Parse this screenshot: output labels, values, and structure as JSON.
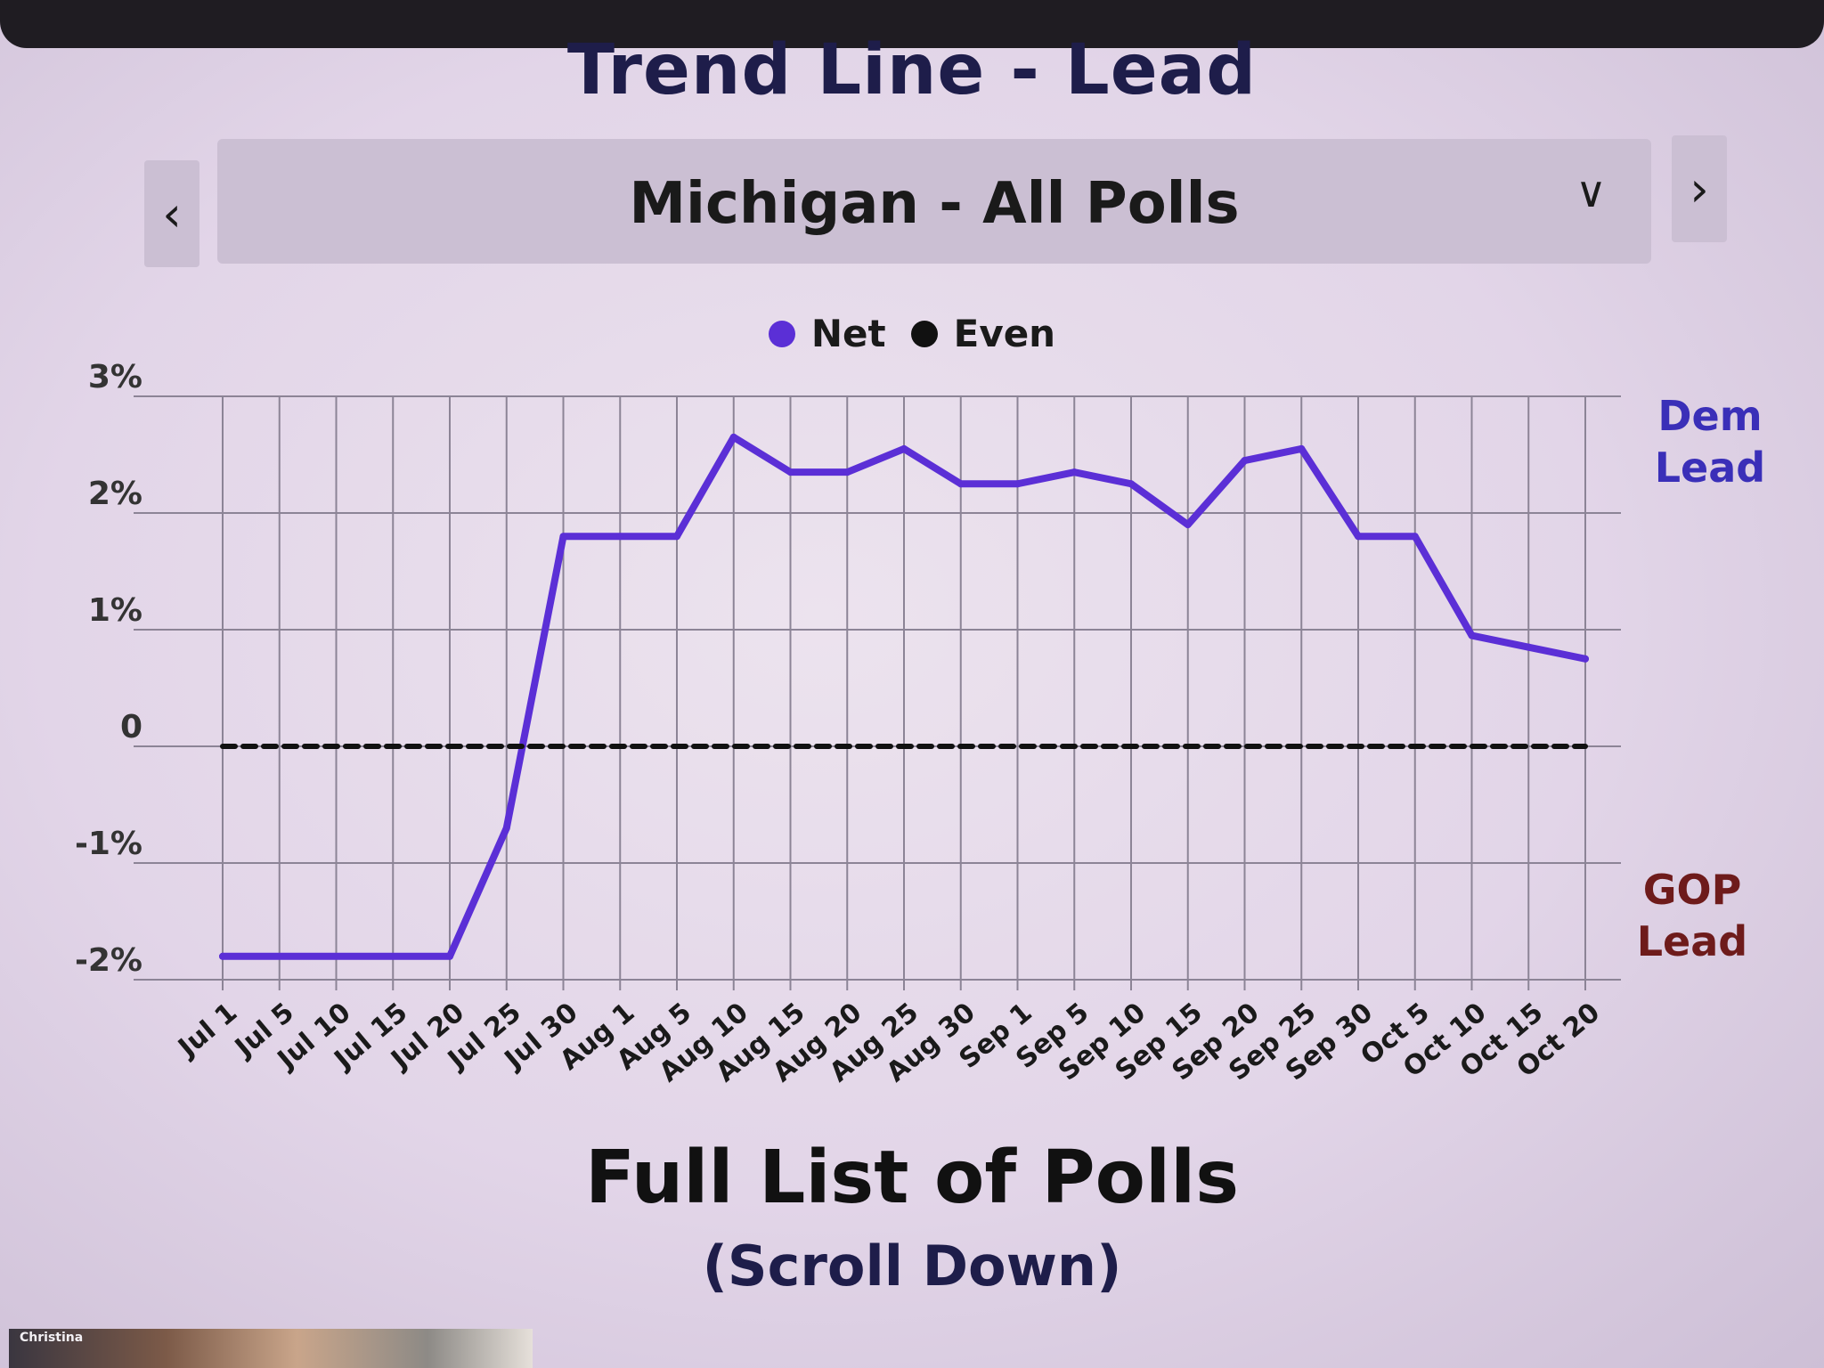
{
  "header": {
    "title": "Trend Line - Lead"
  },
  "selector": {
    "value": "Michigan - All Polls",
    "prev_icon": "chevron-left-icon",
    "next_icon": "chevron-right-icon",
    "dropdown_icon": "chevron-down-icon"
  },
  "legend": {
    "items": [
      {
        "label": "Net",
        "color": "#5b2fd6"
      },
      {
        "label": "Even",
        "color": "#111111"
      }
    ]
  },
  "side_labels": {
    "dem": "Dem\nLead",
    "gop": "GOP\nLead"
  },
  "footer": {
    "full_list": "Full List of Polls",
    "scroll_down": "(Scroll Down)"
  },
  "thumbnail": {
    "caption": "Christina"
  },
  "chart_data": {
    "type": "line",
    "title": "Trend Line - Lead",
    "subtitle": "Michigan - All Polls",
    "xlabel": "",
    "ylabel": "",
    "ylim": [
      -2,
      3
    ],
    "y_ticks": [
      {
        "value": 3,
        "label": "3%"
      },
      {
        "value": 2,
        "label": "2%"
      },
      {
        "value": 1,
        "label": "1%"
      },
      {
        "value": 0,
        "label": "0"
      },
      {
        "value": -1,
        "label": "-1%"
      },
      {
        "value": -2,
        "label": "-2%"
      }
    ],
    "categories": [
      "Jul 1",
      "Jul 5",
      "Jul 10",
      "Jul 15",
      "Jul 20",
      "Jul 25",
      "Jul 30",
      "Aug 1",
      "Aug 5",
      "Aug 10",
      "Aug 15",
      "Aug 20",
      "Aug 25",
      "Aug 30",
      "Sep 1",
      "Sep 5",
      "Sep 10",
      "Sep 15",
      "Sep 20",
      "Sep 25",
      "Sep 30",
      "Oct 5",
      "Oct 10",
      "Oct 15",
      "Oct 20"
    ],
    "grid": true,
    "legend_position": "top-center",
    "series": [
      {
        "name": "Net",
        "color": "#5b2fd6",
        "style": "solid",
        "points": [
          {
            "x": "Jul 1",
            "y": -1.8
          },
          {
            "x": "Jul 20",
            "y": -1.8
          },
          {
            "x": "Jul 25",
            "y": -0.7
          },
          {
            "x": "Jul 30",
            "y": 1.8
          },
          {
            "x": "Aug 1",
            "y": 1.8
          },
          {
            "x": "Aug 5",
            "y": 1.8
          },
          {
            "x": "Aug 10",
            "y": 2.65
          },
          {
            "x": "Aug 15",
            "y": 2.35
          },
          {
            "x": "Aug 20",
            "y": 2.35
          },
          {
            "x": "Aug 25",
            "y": 2.55
          },
          {
            "x": "Aug 30",
            "y": 2.25
          },
          {
            "x": "Sep 1",
            "y": 2.25
          },
          {
            "x": "Sep 5",
            "y": 2.35
          },
          {
            "x": "Sep 10",
            "y": 2.25
          },
          {
            "x": "Sep 15",
            "y": 1.9
          },
          {
            "x": "Sep 20",
            "y": 2.45
          },
          {
            "x": "Sep 25",
            "y": 2.55
          },
          {
            "x": "Sep 30",
            "y": 1.8
          },
          {
            "x": "Oct 5",
            "y": 1.8
          },
          {
            "x": "Oct 10",
            "y": 0.95
          },
          {
            "x": "Oct 15",
            "y": 0.85
          },
          {
            "x": "Oct 20",
            "y": 0.75
          }
        ]
      },
      {
        "name": "Even",
        "color": "#111111",
        "style": "dashed",
        "points": [
          {
            "x": "Jul 1",
            "y": 0
          },
          {
            "x": "Oct 20",
            "y": 0
          }
        ]
      }
    ]
  }
}
